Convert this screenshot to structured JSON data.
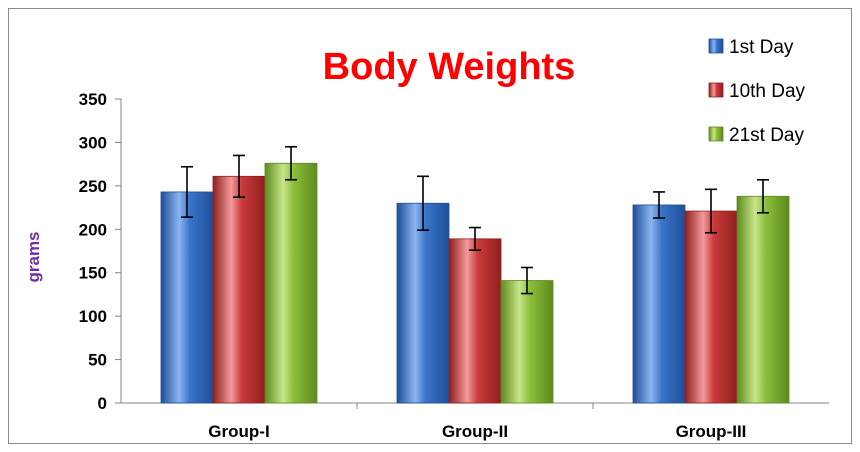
{
  "chart_data": {
    "type": "bar",
    "title": "Body Weights",
    "ylabel": "grams",
    "xlabel": "",
    "categories": [
      "Group-I",
      "Group-II",
      "Group-III"
    ],
    "series": [
      {
        "name": "1st Day",
        "values": [
          243,
          230,
          228
        ],
        "error": [
          29,
          31,
          15
        ]
      },
      {
        "name": "10th Day",
        "values": [
          261,
          189,
          221
        ],
        "error": [
          24,
          13,
          25
        ]
      },
      {
        "name": "21st Day",
        "values": [
          276,
          141,
          238
        ],
        "error": [
          19,
          15,
          19
        ]
      }
    ],
    "ylim": [
      0,
      350
    ],
    "yticks": [
      0,
      50,
      100,
      150,
      200,
      250,
      300,
      350
    ],
    "legend_position": "top-right",
    "grid": false,
    "colors": {
      "series": [
        "#3a74c9",
        "#cc3b3b",
        "#8cbf3c"
      ],
      "series_dark": [
        "#1f4f99",
        "#8f1f1f",
        "#5e8a1f"
      ],
      "series_light": [
        "#8db4ef",
        "#f29a9a",
        "#c8e68a"
      ],
      "title": "#ff0000",
      "ylabel": "#7030a0"
    }
  }
}
